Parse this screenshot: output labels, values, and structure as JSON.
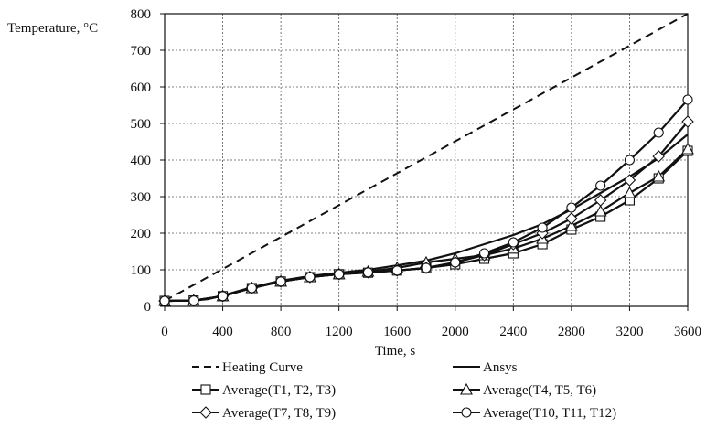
{
  "chart_data": {
    "type": "line",
    "title": "",
    "xlabel": "Time, s",
    "ylabel": "Temperature, °C",
    "xlim": [
      0,
      3600
    ],
    "ylim": [
      0,
      800
    ],
    "x_ticks": [
      "0",
      "400",
      "800",
      "1200",
      "1600",
      "2000",
      "2400",
      "2800",
      "3200",
      "3600"
    ],
    "y_ticks": [
      "0",
      "100",
      "200",
      "300",
      "400",
      "500",
      "600",
      "700",
      "800"
    ],
    "grid": "dashed",
    "legend_position": "bottom",
    "series": [
      {
        "name": "Heating Curve",
        "style": "dashed",
        "marker": "none",
        "x": [
          0,
          3600
        ],
        "y": [
          15,
          800
        ]
      },
      {
        "name": "Ansys",
        "style": "solid",
        "marker": "none",
        "x": [
          0,
          200,
          300,
          400,
          600,
          800,
          1000,
          1200,
          1400,
          1600,
          1800,
          2000,
          2200,
          2400,
          2600,
          2800,
          3000,
          3200,
          3400,
          3600
        ],
        "y": [
          15,
          16,
          20,
          30,
          52,
          70,
          83,
          92,
          100,
          112,
          125,
          145,
          170,
          195,
          225,
          265,
          310,
          355,
          405,
          470
        ]
      },
      {
        "name": "Average(T1, T2, T3)",
        "style": "solid",
        "marker": "square",
        "x": [
          0,
          200,
          400,
          600,
          800,
          1000,
          1200,
          1400,
          1600,
          1800,
          2000,
          2200,
          2400,
          2600,
          2800,
          3000,
          3200,
          3400,
          3600
        ],
        "y": [
          15,
          16,
          28,
          50,
          68,
          80,
          88,
          92,
          98,
          105,
          115,
          130,
          145,
          170,
          210,
          245,
          290,
          350,
          425
        ]
      },
      {
        "name": "Average(T4, T5, T6)",
        "style": "solid",
        "marker": "triangle",
        "x": [
          0,
          200,
          400,
          600,
          800,
          1000,
          1200,
          1400,
          1600,
          1800,
          2000,
          2200,
          2400,
          2600,
          2800,
          3000,
          3200,
          3400,
          3600
        ],
        "y": [
          15,
          16,
          28,
          50,
          68,
          80,
          88,
          95,
          105,
          120,
          130,
          140,
          158,
          185,
          220,
          260,
          310,
          355,
          430
        ]
      },
      {
        "name": "Average(T7, T8, T9)",
        "style": "solid",
        "marker": "diamond",
        "x": [
          0,
          200,
          400,
          600,
          800,
          1000,
          1200,
          1400,
          1600,
          1800,
          2000,
          2200,
          2400,
          2600,
          2800,
          3000,
          3200,
          3400,
          3600
        ],
        "y": [
          15,
          16,
          28,
          50,
          68,
          80,
          88,
          93,
          98,
          105,
          120,
          140,
          170,
          200,
          240,
          290,
          345,
          410,
          505
        ]
      },
      {
        "name": "Average(T10, T11, T12)",
        "style": "solid",
        "marker": "circle",
        "x": [
          0,
          200,
          400,
          600,
          800,
          1000,
          1200,
          1400,
          1600,
          1800,
          2000,
          2200,
          2400,
          2600,
          2800,
          3000,
          3200,
          3400,
          3600
        ],
        "y": [
          15,
          16,
          28,
          50,
          68,
          80,
          88,
          93,
          98,
          105,
          120,
          145,
          175,
          215,
          270,
          330,
          400,
          475,
          565
        ]
      }
    ]
  }
}
